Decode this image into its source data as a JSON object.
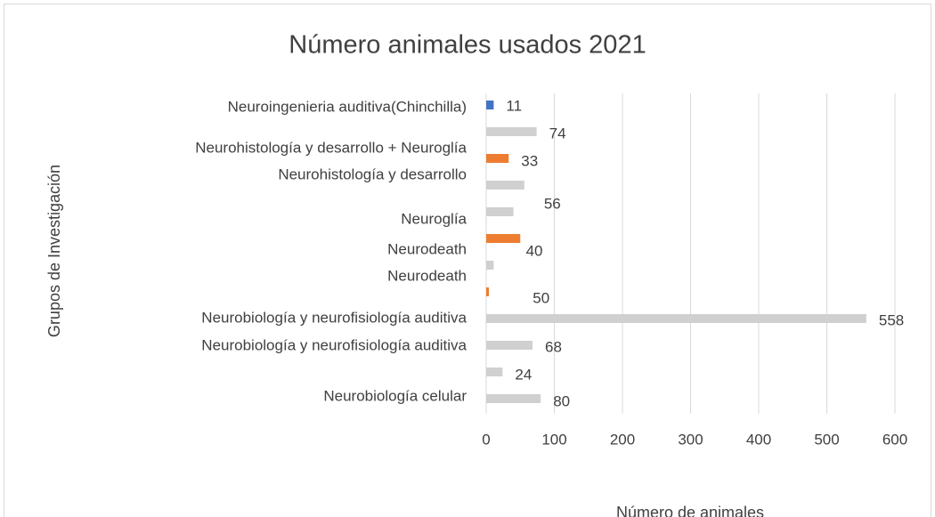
{
  "chart_data": {
    "type": "barh",
    "title": "Número animales usados 2021",
    "x_label": "Número de animales",
    "y_label": "Grupos de Investigación",
    "categories": [
      "Neuroingenieria auditiva(Chinchilla)",
      "Neurohistología y desarrollo + Neuroglía",
      "Neurohistología y desarrollo",
      null,
      "Neuroglía",
      "Neurodeath",
      "Neurodeath",
      null,
      "Neurobiología y neurofisiología auditiva",
      "Neurobiología y neurofisiología auditiva",
      null,
      "Neurobiología celular"
    ],
    "values": [
      11,
      74,
      33,
      56,
      40,
      50,
      11,
      4,
      558,
      68,
      24,
      80
    ],
    "value_labels": [
      "11",
      "74",
      "33",
      "56",
      "40",
      "50",
      null,
      null,
      "558",
      "68",
      "24",
      "80"
    ],
    "colors": [
      "#4472c4",
      "#d0d0d0",
      "#ed7d31",
      "#d0d0d0",
      "#d0d0d0",
      "#ed7d31",
      "#d0d0d0",
      "#ed7d31",
      "#d0d0d0",
      "#d0d0d0",
      "#d0d0d0",
      "#d0d0d0"
    ],
    "xlim": [
      0,
      600
    ],
    "xticks": [
      0,
      100,
      200,
      300,
      400,
      500,
      600
    ],
    "grid": true
  }
}
